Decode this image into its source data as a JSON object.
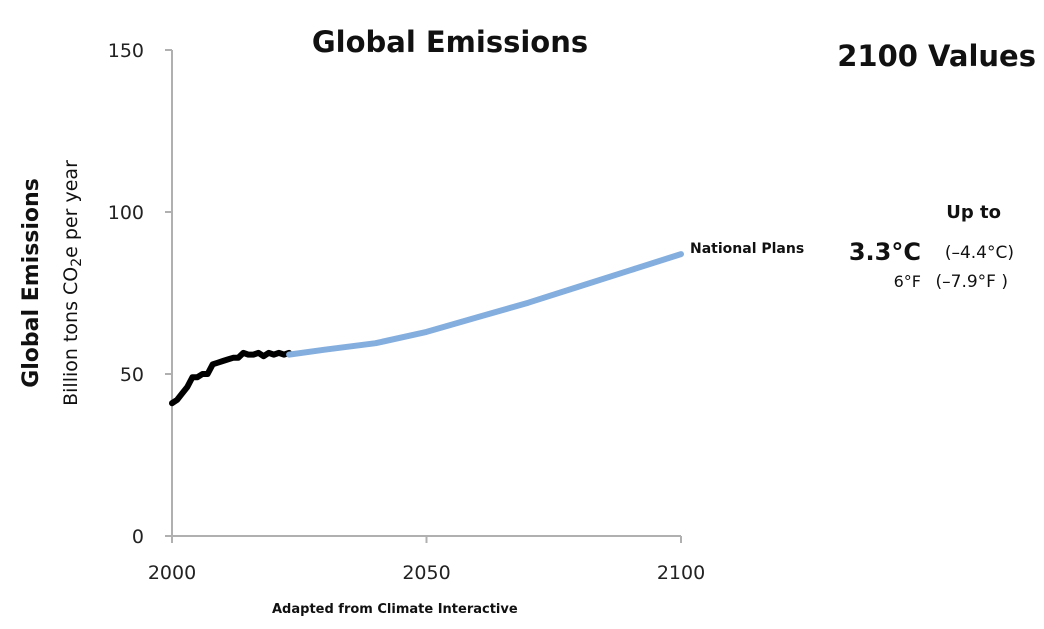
{
  "chart_data": {
    "type": "line",
    "title": "Global Emissions",
    "ylabel": "Global Emissions",
    "ylabel_sub_prefix": "Billion tons CO",
    "ylabel_sub_subscript": "2",
    "ylabel_sub_suffix": "e per year",
    "xlim": [
      2000,
      2100
    ],
    "ylim": [
      0,
      150
    ],
    "x_ticks": [
      2000,
      2050,
      2100
    ],
    "y_ticks": [
      0,
      50,
      100,
      150
    ],
    "grid": false,
    "colors": {
      "historical": "#000000",
      "national_plans": "#84aede",
      "axis": "#b0b0b0"
    },
    "series": [
      {
        "x": [
          2000,
          2001,
          2002,
          2003,
          2004,
          2005,
          2006,
          2007,
          2008,
          2009,
          2010,
          2011,
          2012,
          2013,
          2014,
          2015,
          2016,
          2017,
          2018,
          2019,
          2020,
          2021,
          2022,
          2023
        ],
        "values": [
          41,
          42,
          44,
          46,
          49,
          49,
          50,
          50,
          53,
          53.5,
          54,
          54.5,
          55,
          55,
          56.5,
          56,
          56,
          56.5,
          55.5,
          56.5,
          56,
          56.5,
          56,
          56.5
        ]
      },
      {
        "name": "National Plans",
        "x": [
          2023,
          2030,
          2040,
          2050,
          2060,
          2070,
          2080,
          2090,
          2100
        ],
        "values": [
          56,
          57.5,
          59.5,
          63,
          67.5,
          72,
          77,
          82,
          87
        ]
      }
    ],
    "annotations": {
      "values_heading": "2100 Values",
      "up_to": "Up to",
      "temp_c": "3.3°C",
      "temp_c_range": "(–4.4°C)",
      "temp_f": "6°F",
      "temp_f_range": "(–7.9°F )",
      "source": "Adapted from Climate Interactive"
    }
  }
}
